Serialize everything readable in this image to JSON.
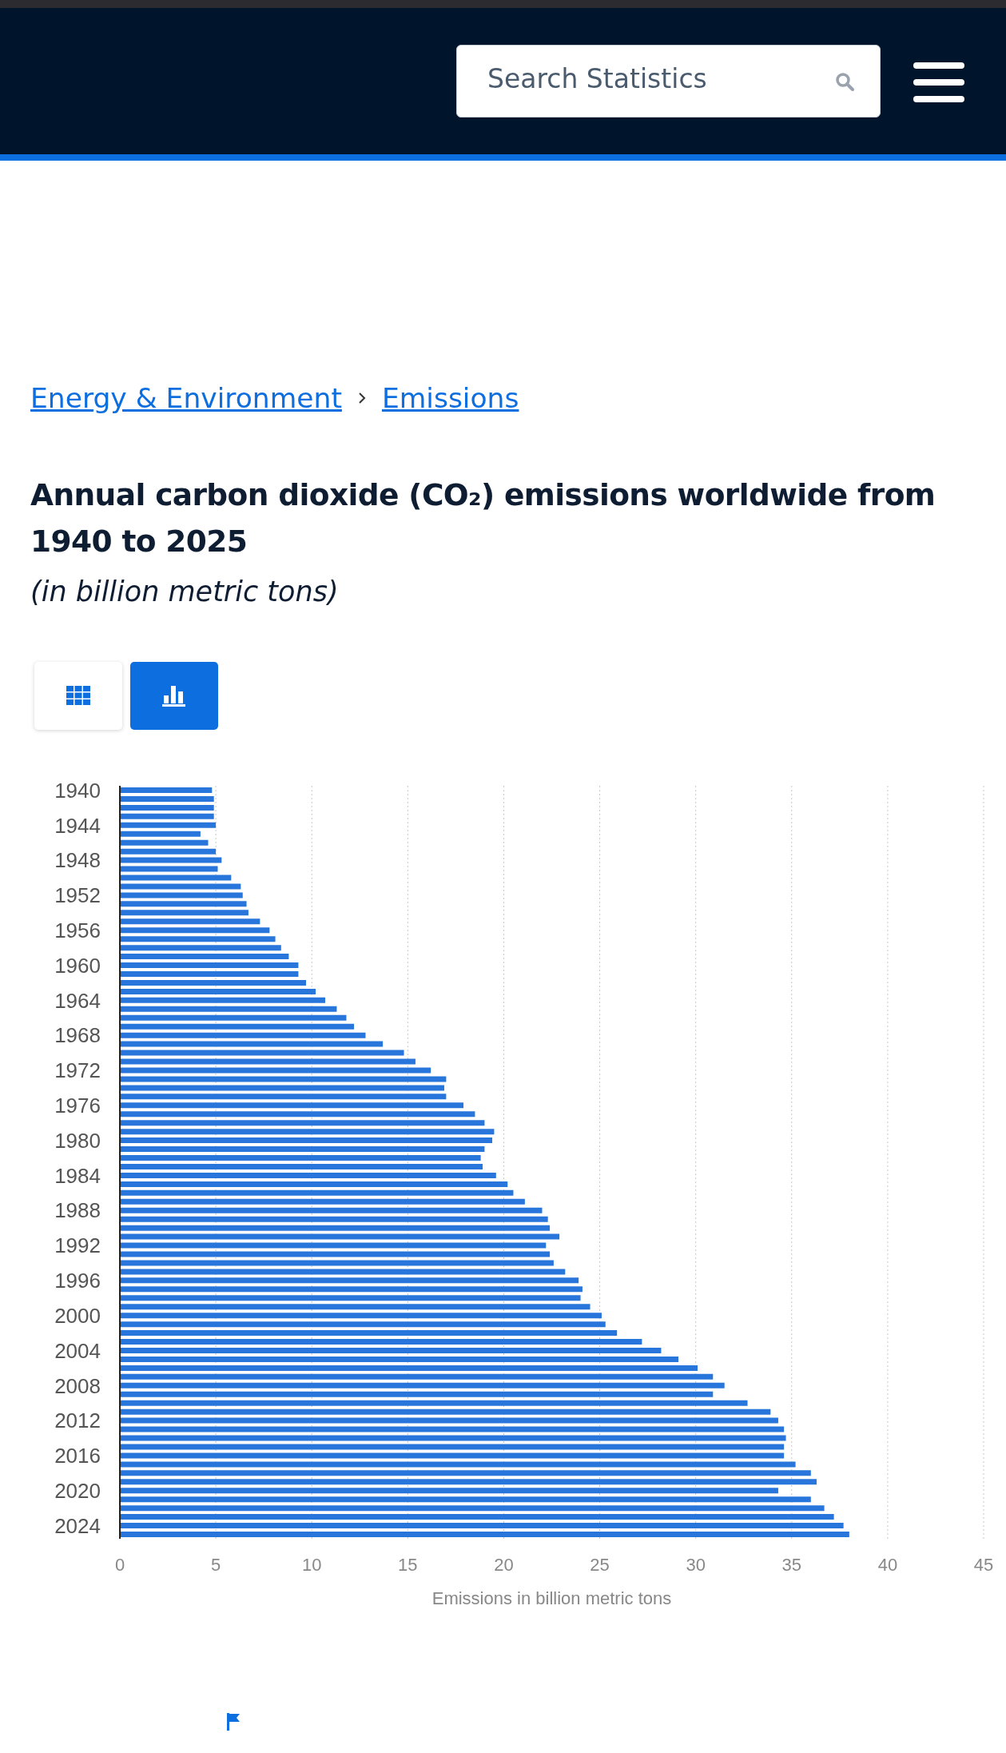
{
  "chart_data": {
    "type": "bar",
    "orientation": "horizontal",
    "title": "Annual carbon dioxide (CO₂) emissions worldwide from 1940 to 2025",
    "subtitle": "(in billion metric tons)",
    "xlabel": "Emissions in billion metric tons",
    "annotations": [
      "Search Statistics",
      "Energy & Environment",
      "Emissions"
    ],
    "categories": [
      "1940",
      null,
      null,
      null,
      "1944",
      null,
      null,
      null,
      "1948",
      null,
      null,
      null,
      "1952",
      null,
      null,
      null,
      "1956",
      null,
      null,
      null,
      "1960",
      null,
      null,
      null,
      "1964",
      null,
      null,
      null,
      "1968",
      null,
      null,
      null,
      "1972",
      null,
      null,
      null,
      "1976",
      null,
      null,
      null,
      "1980",
      null,
      null,
      null,
      "1984",
      null,
      null,
      null,
      "1988",
      null,
      null,
      null,
      "1992",
      null,
      null,
      null,
      "1996",
      null,
      null,
      null,
      "2000",
      null,
      null,
      null,
      "2004",
      null,
      null,
      null,
      "2008",
      null,
      null,
      null,
      "2012",
      null,
      null,
      null,
      "2016",
      null,
      null,
      null,
      "2020",
      null,
      null,
      null,
      "2024",
      null
    ],
    "values": [
      4.8,
      4.9,
      4.9,
      4.9,
      5.0,
      4.2,
      4.6,
      5.0,
      5.3,
      5.1,
      5.8,
      6.3,
      6.4,
      6.6,
      6.7,
      7.3,
      7.8,
      8.1,
      8.4,
      8.8,
      9.3,
      9.3,
      9.7,
      10.2,
      10.7,
      11.3,
      11.8,
      12.2,
      12.8,
      13.7,
      14.8,
      15.4,
      16.2,
      17.0,
      16.9,
      17.0,
      17.9,
      18.5,
      19.0,
      19.5,
      19.4,
      19.0,
      18.8,
      18.9,
      19.6,
      20.2,
      20.5,
      21.1,
      22.0,
      22.3,
      22.4,
      22.9,
      22.2,
      22.4,
      22.6,
      23.2,
      23.9,
      24.1,
      24.0,
      24.5,
      25.1,
      25.3,
      25.9,
      27.2,
      28.2,
      29.1,
      30.1,
      30.9,
      31.5,
      30.9,
      32.7,
      33.9,
      34.3,
      34.6,
      34.7,
      34.6,
      34.6,
      35.2,
      36.0,
      36.3,
      34.3,
      36.0,
      36.7,
      37.2,
      37.7,
      38.0
    ],
    "color": "#2876dc",
    "xlim": [
      0,
      45
    ],
    "xticks": [
      0,
      5,
      10,
      15,
      20,
      25,
      30,
      35,
      40,
      45
    ],
    "grid": "x"
  }
}
